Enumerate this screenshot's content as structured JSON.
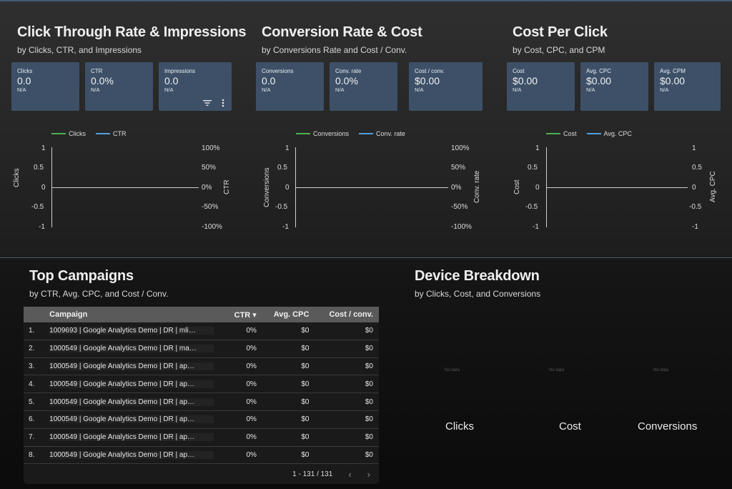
{
  "sections": {
    "ctr": {
      "title": "Click Through Rate & Impressions",
      "subtitle": "by Clicks, CTR, and Impressions",
      "cards": [
        {
          "label": "Clicks",
          "value": "0.0",
          "delta": "N/A"
        },
        {
          "label": "CTR",
          "value": "0.0%",
          "delta": "N/A"
        },
        {
          "label": "Impressions",
          "value": "0.0",
          "delta": "N/A"
        }
      ],
      "legend": [
        "Clicks",
        "CTR"
      ],
      "y_left_label": "Clicks",
      "y_right_label": "CTR",
      "left_ticks": [
        "1",
        "0.5",
        "0",
        "-0.5",
        "-1"
      ],
      "right_ticks": [
        "100%",
        "50%",
        "0%",
        "-50%",
        "-100%"
      ]
    },
    "conv": {
      "title": "Conversion Rate & Cost",
      "subtitle": "by Conversions Rate and Cost / Conv.",
      "cards": [
        {
          "label": "Conversions",
          "value": "0.0",
          "delta": "N/A"
        },
        {
          "label": "Conv. rate",
          "value": "0.0%",
          "delta": "N/A"
        },
        {
          "label": "Cost / conv.",
          "value": "$0.00",
          "delta": "N/A"
        }
      ],
      "legend": [
        "Conversions",
        "Conv. rate"
      ],
      "y_left_label": "Conversions",
      "y_right_label": "Conv. rate",
      "left_ticks": [
        "1",
        "0.5",
        "0",
        "-0.5",
        "-1"
      ],
      "right_ticks": [
        "100%",
        "50%",
        "0%",
        "-50%",
        "-100%"
      ]
    },
    "cpc": {
      "title": "Cost Per Click",
      "subtitle": "by Cost, CPC, and CPM",
      "cards": [
        {
          "label": "Cost",
          "value": "$0.00",
          "delta": "N/A"
        },
        {
          "label": "Avg. CPC",
          "value": "$0.00",
          "delta": "N/A"
        },
        {
          "label": "Avg. CPM",
          "value": "$0.00",
          "delta": "N/A"
        }
      ],
      "legend": [
        "Cost",
        "Avg. CPC"
      ],
      "y_left_label": "Cost",
      "y_right_label": "Avg. CPC",
      "left_ticks": [
        "1",
        "0.5",
        "0",
        "-0.5",
        "-1"
      ],
      "right_ticks": [
        "1",
        "0.5",
        "0",
        "-0.5",
        "-1"
      ]
    }
  },
  "colors": {
    "series_green": "#4caf50",
    "series_blue": "#4f9fe0",
    "card_bg": "#3d5068"
  },
  "icons": {
    "filter": "filter-icon",
    "more": "more-vert-icon"
  },
  "campaigns": {
    "title": "Top Campaigns",
    "subtitle": "by CTR, Avg. CPC, and Cost / Conv.",
    "columns": [
      "Campaign",
      "CTR ▾",
      "Avg. CPC",
      "Cost / conv."
    ],
    "rows": [
      {
        "idx": "1.",
        "campaign": "1009693 | Google Analytics Demo | DR | mli…",
        "ctr": "0%",
        "cpc": "$0",
        "cost": "$0"
      },
      {
        "idx": "2.",
        "campaign": "1000549 | Google Analytics Demo | DR | ma…",
        "ctr": "0%",
        "cpc": "$0",
        "cost": "$0"
      },
      {
        "idx": "3.",
        "campaign": "1000549 | Google Analytics Demo | DR | ap…",
        "ctr": "0%",
        "cpc": "$0",
        "cost": "$0"
      },
      {
        "idx": "4.",
        "campaign": "1000549 | Google Analytics Demo | DR | ap…",
        "ctr": "0%",
        "cpc": "$0",
        "cost": "$0"
      },
      {
        "idx": "5.",
        "campaign": "1000549 | Google Analytics Demo | DR | ap…",
        "ctr": "0%",
        "cpc": "$0",
        "cost": "$0"
      },
      {
        "idx": "6.",
        "campaign": "1000549 | Google Analytics Demo | DR | ap…",
        "ctr": "0%",
        "cpc": "$0",
        "cost": "$0"
      },
      {
        "idx": "7.",
        "campaign": "1000549 | Google Analytics Demo | DR | ap…",
        "ctr": "0%",
        "cpc": "$0",
        "cost": "$0"
      },
      {
        "idx": "8.",
        "campaign": "1000549 | Google Analytics Demo | DR | ap…",
        "ctr": "0%",
        "cpc": "$0",
        "cost": "$0"
      }
    ],
    "pagination": "1 - 131 / 131",
    "prev": "‹",
    "next": "›"
  },
  "devices": {
    "title": "Device Breakdown",
    "subtitle": "by Clicks, Cost, and Conversions",
    "charts": [
      {
        "label": "Clicks",
        "empty": "No data"
      },
      {
        "label": "Cost",
        "empty": "No data"
      },
      {
        "label": "Conversions",
        "empty": "No data"
      }
    ]
  }
}
